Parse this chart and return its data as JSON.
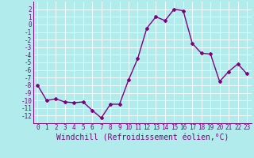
{
  "x": [
    0,
    1,
    2,
    3,
    4,
    5,
    6,
    7,
    8,
    9,
    10,
    11,
    12,
    13,
    14,
    15,
    16,
    17,
    18,
    19,
    20,
    21,
    22,
    23
  ],
  "y": [
    -8,
    -10,
    -9.8,
    -10.2,
    -10.3,
    -10.2,
    -11.3,
    -12.3,
    -10.5,
    -10.5,
    -7.3,
    -4.5,
    -0.5,
    1.0,
    0.5,
    2.0,
    1.8,
    -2.5,
    -3.8,
    -3.9,
    -7.5,
    -6.2,
    -5.2,
    -6.5
  ],
  "line_color": "#800080",
  "marker": "D",
  "marker_size": 2,
  "bg_color": "#b2ebeb",
  "grid_color": "#aadddd",
  "xlabel": "Windchill (Refroidissement éolien,°C)",
  "ylim": [
    -13,
    3
  ],
  "xlim": [
    -0.5,
    23.5
  ],
  "yticks": [
    2,
    1,
    0,
    -1,
    -2,
    -3,
    -4,
    -5,
    -6,
    -7,
    -8,
    -9,
    -10,
    -11,
    -12
  ],
  "xticks": [
    0,
    1,
    2,
    3,
    4,
    5,
    6,
    7,
    8,
    9,
    10,
    11,
    12,
    13,
    14,
    15,
    16,
    17,
    18,
    19,
    20,
    21,
    22,
    23
  ],
  "tick_label_size": 5.5,
  "xlabel_size": 7,
  "line_width": 1.0
}
